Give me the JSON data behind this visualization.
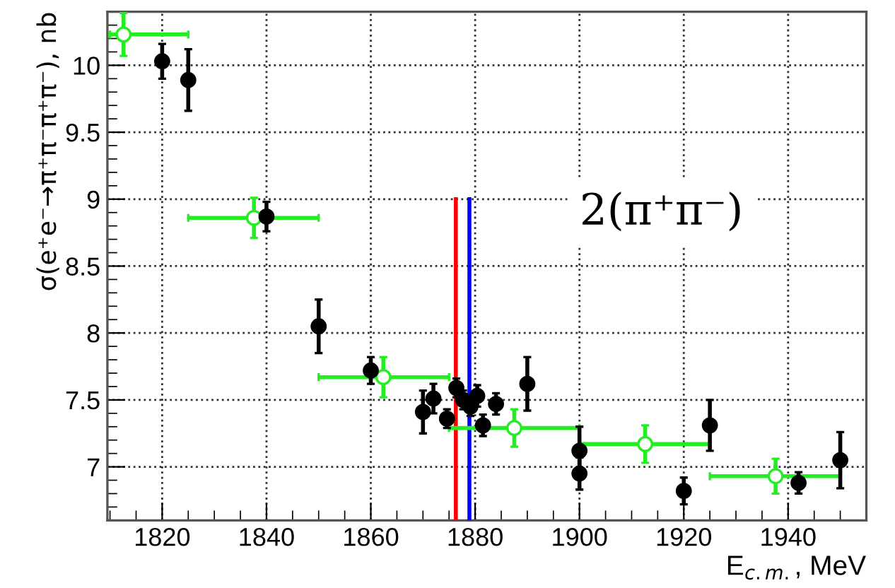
{
  "chart_data": {
    "type": "scatter",
    "xlabel": "E$_{c.m.}$, MeV",
    "ylabel": "σ(e⁺e⁻→π⁺π⁻π⁺π⁻), nb",
    "xlim": [
      1809.5,
      1955
    ],
    "ylim": [
      6.6,
      10.4
    ],
    "xticks": [
      1820,
      1840,
      1860,
      1880,
      1900,
      1920,
      1940
    ],
    "yticks": [
      7,
      7.5,
      8,
      8.5,
      9,
      9.5,
      10
    ],
    "grid": true,
    "annotations": [
      "2(π⁺π⁻)"
    ],
    "series": [
      {
        "color": "#000000",
        "marker": "circle",
        "x": [
          1820,
          1825,
          1840,
          1850,
          1860,
          1870,
          1872,
          1874.6,
          1876.4,
          1877.7,
          1879.1,
          1880.4,
          1881.5,
          1884,
          1890,
          1900,
          1900,
          1920,
          1925,
          1942,
          1950
        ],
        "values": [
          10.03,
          9.89,
          8.87,
          8.05,
          7.72,
          7.41,
          7.51,
          7.36,
          7.59,
          7.5,
          7.45,
          7.53,
          7.31,
          7.47,
          7.62,
          7.12,
          6.95,
          6.82,
          7.31,
          6.88,
          7.05
        ],
        "errors": [
          0.13,
          0.23,
          0.11,
          0.2,
          0.1,
          0.16,
          0.11,
          0.07,
          0.07,
          0.07,
          0.07,
          0.08,
          0.08,
          0.08,
          0.2,
          0.18,
          0.12,
          0.1,
          0.19,
          0.08,
          0.21
        ]
      },
      {
        "color": "#22ee22",
        "marker": "circle",
        "x": [
          1812.6,
          1837.6,
          1862.4,
          1887.5,
          1912.6,
          1937.6
        ],
        "values": [
          10.23,
          8.86,
          7.67,
          7.29,
          7.17,
          6.93
        ],
        "errors": [
          0.16,
          0.15,
          0.15,
          0.14,
          0.14,
          0.13
        ],
        "xerrors": [
          [
            1810,
            1825
          ],
          [
            1825,
            1850
          ],
          [
            1850,
            1875
          ],
          [
            1875,
            1900
          ],
          [
            1900,
            1925
          ],
          [
            1925,
            1950
          ]
        ]
      },
      {
        "type": "line",
        "color": "#ff0000",
        "marker": "none",
        "x": [
          1876.3,
          1876.3
        ],
        "values": [
          6.6,
          9.0
        ]
      },
      {
        "type": "line",
        "color": "#0000ff",
        "marker": "none",
        "x": [
          1878.9,
          1878.9
        ],
        "values": [
          6.6,
          9.0
        ]
      }
    ]
  }
}
